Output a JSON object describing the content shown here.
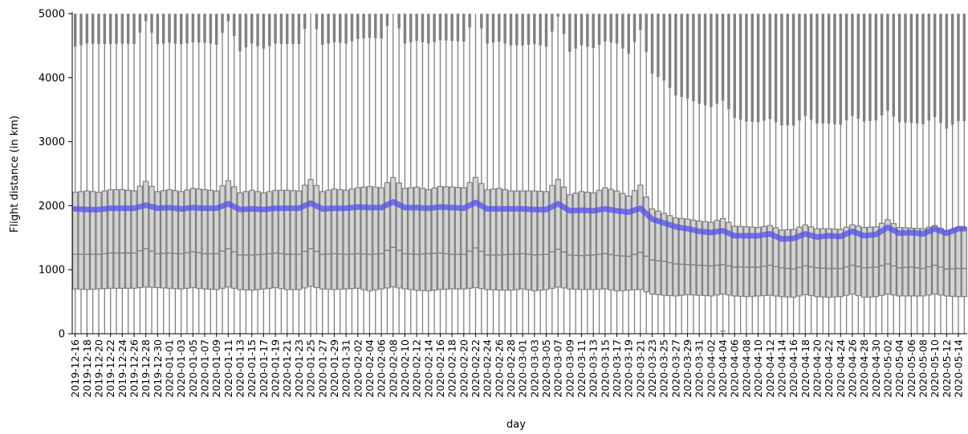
{
  "chart_data": {
    "type": "box",
    "xlabel": "day",
    "ylabel": "Flight distance (in km)",
    "ylim": [
      0,
      5000
    ],
    "yticks": [
      0,
      1000,
      2000,
      3000,
      4000,
      5000
    ],
    "x_start": "2019-12-16",
    "x_end": "2020-05-15",
    "tick_label_every_days": 2,
    "box_color": "#d3d3d3",
    "edge_color": "#7f7f7f",
    "outlier_color": "#808080",
    "mean_line_color": "#5050ee",
    "tick_labels": [
      "2019-12-16",
      "2019-12-18",
      "2019-12-20",
      "2019-12-22",
      "2019-12-24",
      "2019-12-26",
      "2019-12-28",
      "2019-12-30",
      "2020-01-01",
      "2020-01-03",
      "2020-01-05",
      "2020-01-07",
      "2020-01-09",
      "2020-01-11",
      "2020-01-13",
      "2020-01-15",
      "2020-01-17",
      "2020-01-19",
      "2020-01-21",
      "2020-01-23",
      "2020-01-25",
      "2020-01-27",
      "2020-01-29",
      "2020-01-31",
      "2020-02-02",
      "2020-02-04",
      "2020-02-06",
      "2020-02-08",
      "2020-02-10",
      "2020-02-12",
      "2020-02-14",
      "2020-02-16",
      "2020-02-18",
      "2020-02-20",
      "2020-02-22",
      "2020-02-24",
      "2020-02-26",
      "2020-02-28",
      "2020-03-01",
      "2020-03-03",
      "2020-03-05",
      "2020-03-07",
      "2020-03-09",
      "2020-03-11",
      "2020-03-13",
      "2020-03-15",
      "2020-03-17",
      "2020-03-19",
      "2020-03-21",
      "2020-03-23",
      "2020-03-25",
      "2020-03-27",
      "2020-03-29",
      "2020-03-31",
      "2020-04-02",
      "2020-04-04",
      "2020-04-06",
      "2020-04-08",
      "2020-04-10",
      "2020-04-12",
      "2020-04-14",
      "2020-04-16",
      "2020-04-18",
      "2020-04-20",
      "2020-04-22",
      "2020-04-24",
      "2020-04-26",
      "2020-04-28",
      "2020-04-30",
      "2020-05-02",
      "2020-05-04",
      "2020-05-06",
      "2020-05-08",
      "2020-05-10",
      "2020-05-12",
      "2020-05-14"
    ],
    "q1": [
      700,
      690,
      700,
      710,
      710,
      710,
      730,
      720,
      710,
      700,
      720,
      700,
      690,
      730,
      690,
      680,
      700,
      720,
      690,
      690,
      740,
      700,
      690,
      700,
      710,
      670,
      700,
      730,
      700,
      680,
      670,
      690,
      700,
      700,
      720,
      690,
      680,
      680,
      700,
      670,
      690,
      730,
      700,
      690,
      690,
      700,
      670,
      680,
      690,
      620,
      600,
      590,
      610,
      600,
      590,
      620,
      590,
      580,
      590,
      600,
      580,
      570,
      610,
      580,
      570,
      580,
      620,
      570,
      580,
      620,
      590,
      590,
      590,
      620,
      590,
      580
    ],
    "median": [
      1240,
      1240,
      1240,
      1260,
      1260,
      1260,
      1330,
      1250,
      1260,
      1250,
      1280,
      1250,
      1250,
      1330,
      1230,
      1230,
      1240,
      1260,
      1240,
      1240,
      1330,
      1240,
      1250,
      1240,
      1250,
      1240,
      1250,
      1350,
      1250,
      1240,
      1250,
      1260,
      1240,
      1240,
      1340,
      1230,
      1230,
      1240,
      1250,
      1230,
      1240,
      1320,
      1230,
      1220,
      1230,
      1250,
      1220,
      1210,
      1270,
      1150,
      1130,
      1090,
      1080,
      1070,
      1060,
      1080,
      1040,
      1040,
      1040,
      1070,
      1030,
      1010,
      1060,
      1030,
      1020,
      1020,
      1070,
      1030,
      1040,
      1090,
      1030,
      1040,
      1020,
      1070,
      1010,
      1020
    ],
    "q3": [
      2210,
      2230,
      2210,
      2250,
      2250,
      2230,
      2380,
      2220,
      2250,
      2220,
      2270,
      2250,
      2230,
      2390,
      2200,
      2240,
      2200,
      2240,
      2240,
      2230,
      2410,
      2220,
      2260,
      2240,
      2280,
      2300,
      2280,
      2440,
      2270,
      2290,
      2250,
      2300,
      2290,
      2280,
      2440,
      2250,
      2270,
      2230,
      2230,
      2230,
      2220,
      2410,
      2170,
      2220,
      2200,
      2280,
      2230,
      2150,
      2320,
      1950,
      1880,
      1810,
      1790,
      1760,
      1740,
      1800,
      1680,
      1670,
      1660,
      1690,
      1620,
      1630,
      1700,
      1640,
      1640,
      1630,
      1700,
      1660,
      1670,
      1780,
      1660,
      1650,
      1640,
      1690,
      1600,
      1660
    ],
    "whisker_high": [
      4480,
      4530,
      4520,
      4520,
      4530,
      4520,
      4880,
      4520,
      4540,
      4520,
      4550,
      4540,
      4510,
      4880,
      4410,
      4530,
      4450,
      4530,
      4520,
      4520,
      5000,
      4510,
      4550,
      4530,
      4600,
      4620,
      4610,
      5000,
      4530,
      4570,
      4530,
      4580,
      4570,
      4560,
      5000,
      4530,
      4560,
      4500,
      4500,
      4520,
      4480,
      4950,
      4400,
      4500,
      4460,
      4560,
      4530,
      4370,
      4740,
      4060,
      3950,
      3720,
      3670,
      3590,
      3540,
      3640,
      3370,
      3310,
      3300,
      3350,
      3250,
      3250,
      3400,
      3280,
      3280,
      3260,
      3400,
      3310,
      3330,
      3480,
      3300,
      3290,
      3270,
      3380,
      3200,
      3320
    ],
    "mean": [
      1950,
      1940,
      1940,
      1960,
      1960,
      1960,
      2010,
      1960,
      1970,
      1950,
      1970,
      1960,
      1960,
      2030,
      1940,
      1950,
      1940,
      1960,
      1960,
      1960,
      2040,
      1950,
      1960,
      1960,
      1980,
      1970,
      1970,
      2060,
      1970,
      1970,
      1960,
      1980,
      1970,
      1960,
      2050,
      1950,
      1950,
      1950,
      1950,
      1940,
      1940,
      2030,
      1920,
      1930,
      1920,
      1950,
      1920,
      1900,
      1960,
      1790,
      1730,
      1670,
      1640,
      1600,
      1580,
      1610,
      1530,
      1530,
      1530,
      1560,
      1480,
      1490,
      1560,
      1510,
      1530,
      1520,
      1600,
      1530,
      1550,
      1660,
      1570,
      1580,
      1560,
      1640,
      1570,
      1640
    ],
    "low_outliers": [
      {
        "date": "2020-04-04",
        "value": 40
      }
    ]
  }
}
